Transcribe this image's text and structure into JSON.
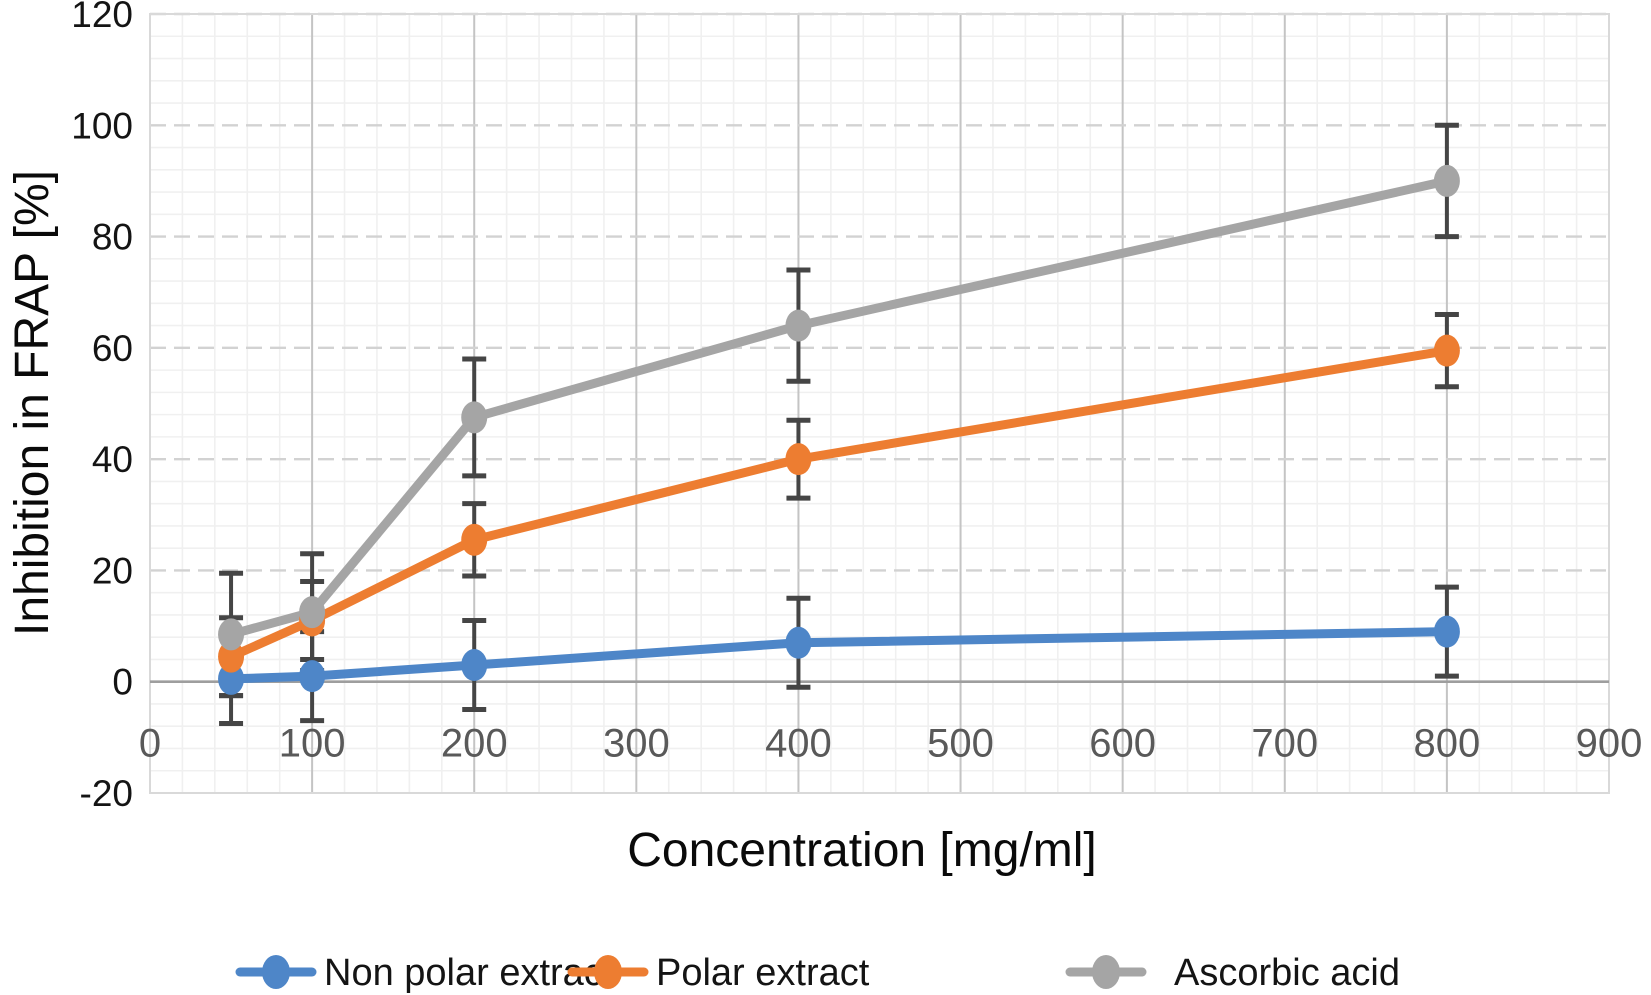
{
  "chart_data": {
    "type": "line",
    "title": "",
    "xlabel": "Concentration [mg/ml]",
    "ylabel": "Inhibition in FRAP [%]",
    "x": [
      50,
      100,
      200,
      400,
      800
    ],
    "series": [
      {
        "name": "Non polar extract",
        "color": "#4E86C8",
        "values": [
          0.5,
          1,
          3,
          7,
          9
        ],
        "error": [
          8,
          8,
          8,
          8,
          8
        ]
      },
      {
        "name": "Polar extract",
        "color": "#ED7D31",
        "values": [
          4.5,
          11,
          25.5,
          40,
          59.5
        ],
        "error": [
          7,
          7,
          6.5,
          7,
          6.5
        ]
      },
      {
        "name": "Ascorbic acid",
        "color": "#A5A5A5",
        "values": [
          8.5,
          12.5,
          47.5,
          64,
          90
        ],
        "error": [
          11,
          10.5,
          10.5,
          10,
          10
        ]
      }
    ],
    "xlim": [
      0,
      900
    ],
    "ylim": [
      -20,
      120
    ],
    "xticks": [
      0,
      100,
      200,
      300,
      400,
      500,
      600,
      700,
      800,
      900
    ],
    "xtick_labels": [
      "0",
      "100",
      "200",
      "300",
      "400",
      "500",
      "600",
      "700",
      "800",
      "900"
    ],
    "yticks": [
      -20,
      0,
      20,
      40,
      60,
      80,
      100,
      120
    ],
    "ytick_labels": [
      "-20",
      "0",
      "20",
      "40",
      "60",
      "80",
      "100",
      "120"
    ],
    "x_minor_step": 20,
    "y_minor_step": 4,
    "grid": "major and minor gridlines on",
    "legend_position": "bottom",
    "error_bars": "vertical, capped, all series",
    "style": {
      "background": "#ffffff",
      "error_bar_color": "#454545",
      "zero_axis_color": "#9e9e9e",
      "major_hgrid_color": "#d2d2d2",
      "major_vgrid_color": "#c4c4c4",
      "minor_grid_color": "#f0f0f0",
      "plot_border_color": "#d9d9d9"
    }
  }
}
